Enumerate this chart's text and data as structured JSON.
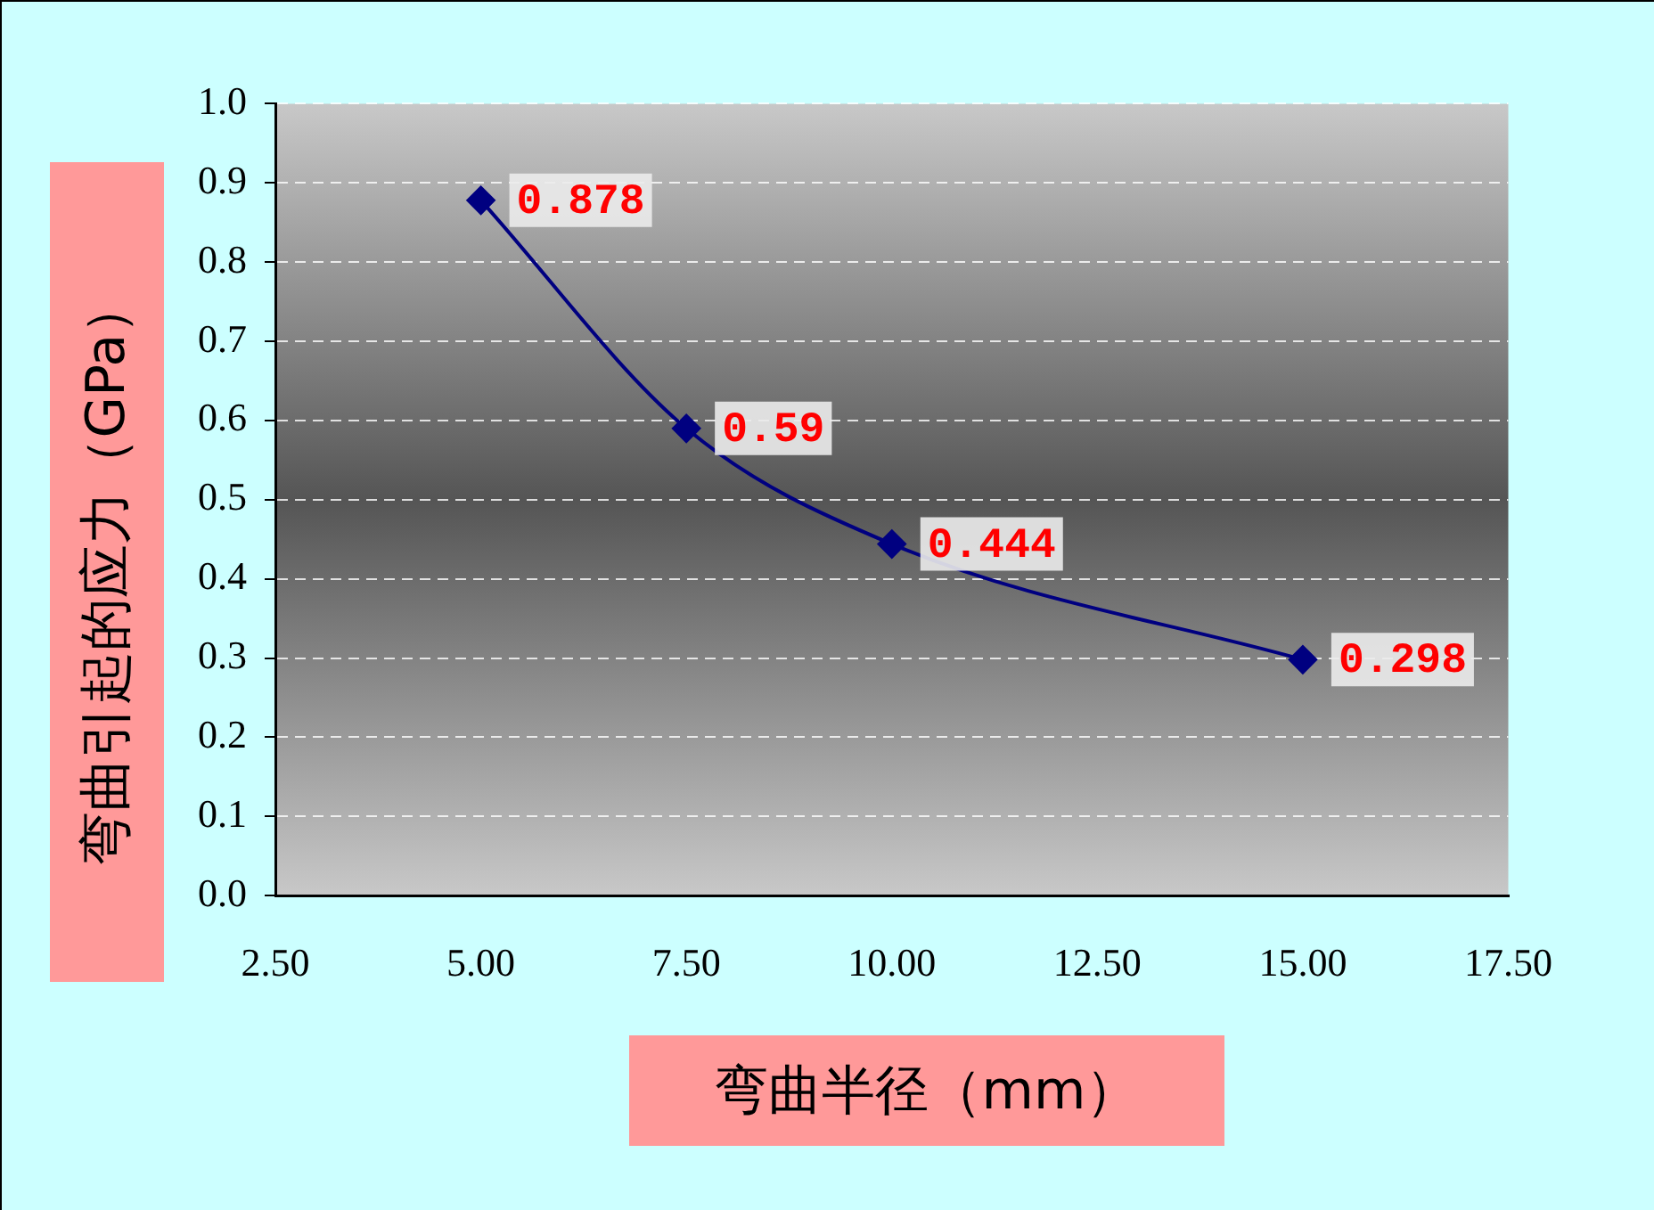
{
  "chart_data": {
    "type": "line",
    "xlabel": "弯曲半径（mm）",
    "ylabel": "弯曲引起的应力（GPa）",
    "x": [
      5,
      7.5,
      10,
      15
    ],
    "series": [
      {
        "color": "#000080",
        "values": [
          0.878,
          0.59,
          0.444,
          0.298
        ]
      }
    ],
    "xlim": [
      2.5,
      17.5
    ],
    "xticks": [
      {
        "value": 2.5,
        "label": "2.50"
      },
      {
        "value": 5,
        "label": "5.00"
      },
      {
        "value": 7.5,
        "label": "7.50"
      },
      {
        "value": 10,
        "label": "10.00"
      },
      {
        "value": 12.5,
        "label": "12.50"
      },
      {
        "value": 15,
        "label": "15.00"
      },
      {
        "value": 17.5,
        "label": "17.50"
      }
    ],
    "ylim": [
      0,
      1
    ],
    "yticks": [
      {
        "value": 0,
        "label": "0.0"
      },
      0.1,
      0.2,
      0.3,
      0.4,
      0.5,
      0.6,
      0.7,
      0.8,
      0.9,
      {
        "value": 1,
        "label": "1.0"
      }
    ],
    "grid": "y",
    "legend": false,
    "marker": "diamond",
    "line_style": "solid",
    "data_labels": true
  }
}
